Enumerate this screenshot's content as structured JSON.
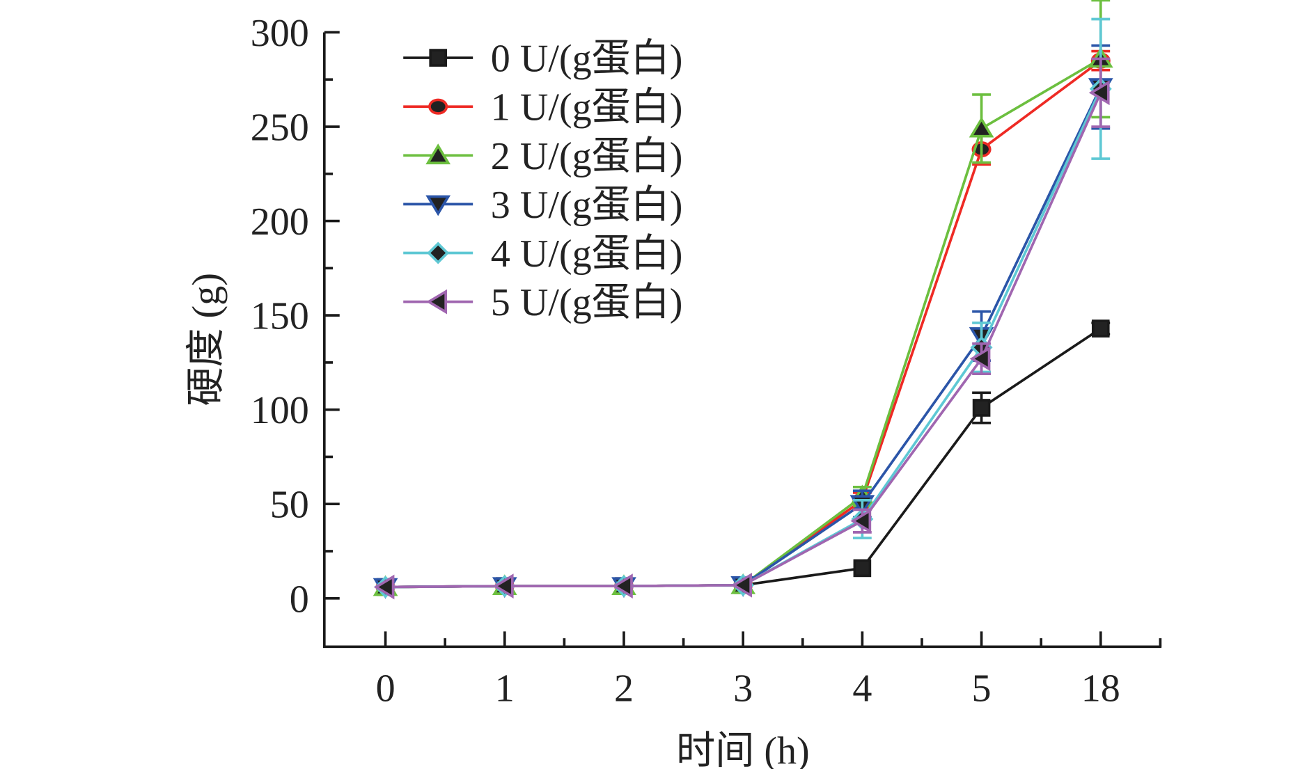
{
  "chart_data": {
    "type": "line",
    "title": "",
    "xlabel": "时间 (h)",
    "ylabel": "硬度 (g)",
    "categories": [
      "0",
      "1",
      "2",
      "3",
      "4",
      "5",
      "18"
    ],
    "ylim": [
      -25,
      300
    ],
    "yticks": [
      "0",
      "50",
      "100",
      "150",
      "200",
      "250",
      "300"
    ],
    "ytick_values": [
      0,
      50,
      100,
      150,
      200,
      250,
      300
    ],
    "legend_position": "top-left",
    "series": [
      {
        "name": "0 U/(g蛋白)",
        "color": "#1a1a1a",
        "marker": "square",
        "values": [
          6,
          6.5,
          6.5,
          7,
          16,
          101,
          143
        ],
        "errors": [
          1,
          1,
          1,
          1,
          2,
          8,
          3
        ]
      },
      {
        "name": "1 U/(g蛋白)",
        "color": "#ee2a24",
        "marker": "circle",
        "values": [
          6,
          6.5,
          6.5,
          7,
          52,
          238,
          285
        ],
        "errors": [
          1,
          1,
          1,
          1,
          4,
          8,
          5
        ]
      },
      {
        "name": "2 U/(g蛋白)",
        "color": "#6cbf3f",
        "marker": "triangle-up",
        "values": [
          6,
          6.5,
          6.5,
          7,
          54,
          249,
          286
        ],
        "errors": [
          1,
          1,
          1,
          1,
          5,
          18,
          31
        ]
      },
      {
        "name": "3 U/(g蛋白)",
        "color": "#2b55a8",
        "marker": "triangle-down",
        "values": [
          6,
          6.5,
          6.5,
          7,
          50,
          139,
          271
        ],
        "errors": [
          1,
          1,
          1,
          1,
          7,
          13,
          22
        ]
      },
      {
        "name": "4 U/(g蛋白)",
        "color": "#5ec8d4",
        "marker": "diamond",
        "values": [
          6,
          6.5,
          6.5,
          7,
          42,
          133,
          270
        ],
        "errors": [
          1,
          1,
          1,
          1,
          10,
          13,
          37
        ]
      },
      {
        "name": "5 U/(g蛋白)",
        "color": "#a066b0",
        "marker": "triangle-left",
        "values": [
          6,
          6.5,
          6.5,
          7,
          41,
          127,
          268
        ],
        "errors": [
          1,
          1,
          1,
          1,
          6,
          8,
          18
        ]
      }
    ]
  }
}
